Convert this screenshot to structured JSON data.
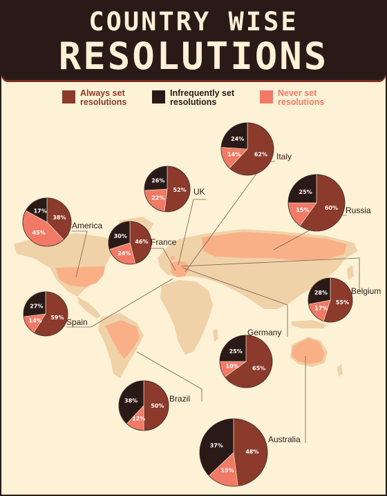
{
  "header": {
    "title_line1": "COUNTRY WISE",
    "title_line2": "RESOLUTIONS"
  },
  "colors": {
    "always": "#8b3a2b",
    "infrequently": "#2a1a17",
    "never": "#f07a66",
    "background": "#fdf1d6",
    "land": "#f0d2a8",
    "highlight": "#f9b087"
  },
  "chart_data": {
    "type": "pie",
    "categories": [
      "Always set resolutions",
      "Infrequently set resolutions",
      "Never set resolutions"
    ],
    "legend": [
      {
        "key": "always",
        "label_line1": "Always set",
        "label_line2": "resolutions"
      },
      {
        "key": "infrequently",
        "label_line1": "Infrequently set",
        "label_line2": "resolutions"
      },
      {
        "key": "never",
        "label_line1": "Never set",
        "label_line2": "resolutions"
      }
    ],
    "legend_position": "top",
    "pies": [
      {
        "country": "Italy",
        "always": 62,
        "infrequently": 24,
        "never": 14
      },
      {
        "country": "UK",
        "always": 52,
        "infrequently": 26,
        "never": 22
      },
      {
        "country": "Russia",
        "always": 60,
        "infrequently": 25,
        "never": 15
      },
      {
        "country": "America",
        "always": 38,
        "infrequently": 17,
        "never": 45
      },
      {
        "country": "France",
        "always": 46,
        "infrequently": 30,
        "never": 24
      },
      {
        "country": "Belgium",
        "always": 55,
        "infrequently": 28,
        "never": 17
      },
      {
        "country": "Spain",
        "always": 59,
        "infrequently": 27,
        "never": 14
      },
      {
        "country": "Germany",
        "always": 65,
        "infrequently": 25,
        "never": 10
      },
      {
        "country": "Brazil",
        "always": 50,
        "infrequently": 38,
        "never": 12
      },
      {
        "country": "Australia",
        "always": 48,
        "infrequently": 37,
        "never": 15
      }
    ]
  }
}
